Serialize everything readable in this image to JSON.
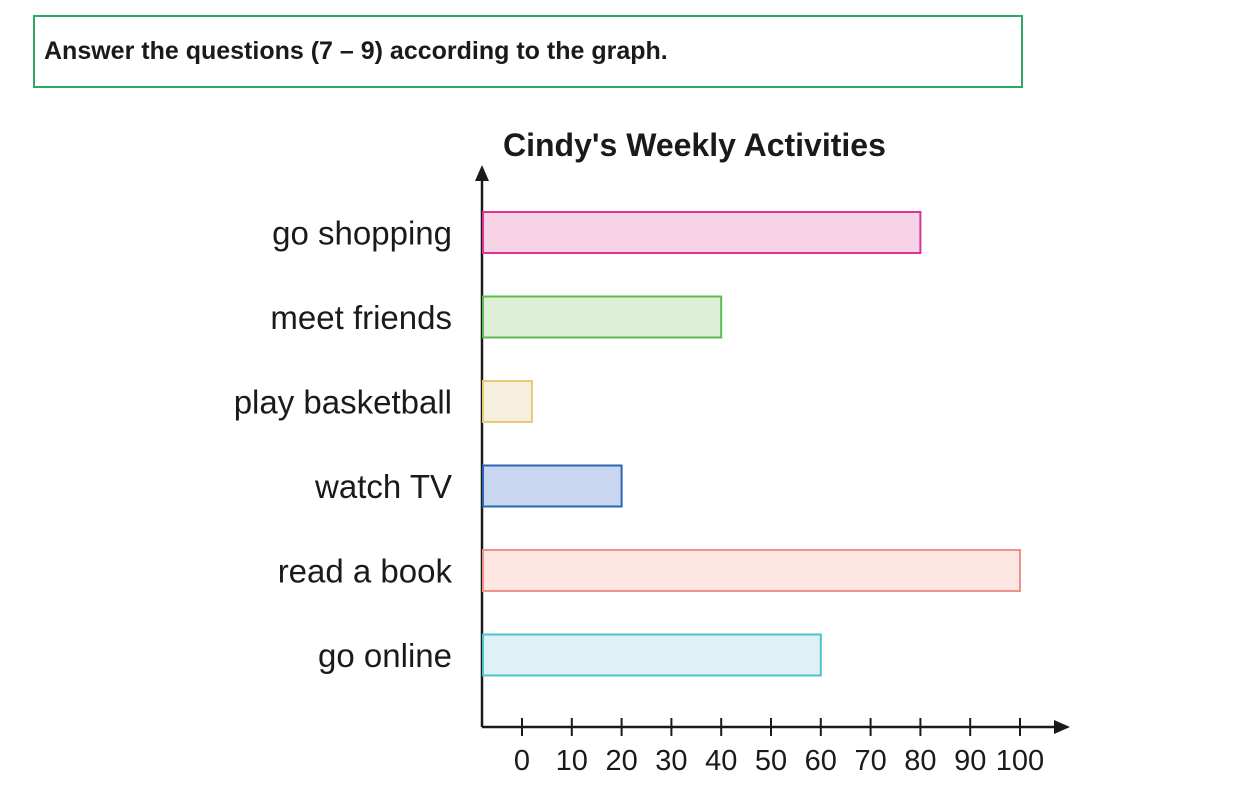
{
  "instruction": "Answer the questions (7 – 9) according to the graph.",
  "colors": {
    "instruction_border": "#2fa865",
    "axis": "#1a1a1a"
  },
  "chart_data": {
    "type": "bar",
    "orientation": "horizontal",
    "title": "Cindy's Weekly Activities",
    "xlabel": "",
    "ylabel": "",
    "categories": [
      "go shopping",
      "meet friends",
      "play basketball",
      "watch TV",
      "read a book",
      "go online"
    ],
    "values": [
      80,
      40,
      2,
      20,
      100,
      60
    ],
    "xlim": [
      0,
      100
    ],
    "xticks": [
      0,
      10,
      20,
      30,
      40,
      50,
      60,
      70,
      80,
      90,
      100
    ],
    "grid": false,
    "bar_colors": [
      {
        "fill": "#f7d3e6",
        "stroke": "#e0309a"
      },
      {
        "fill": "#ddefd6",
        "stroke": "#5bbd4e"
      },
      {
        "fill": "#f6efdd",
        "stroke": "#e8c97a"
      },
      {
        "fill": "#c9d6ef",
        "stroke": "#2b66b2"
      },
      {
        "fill": "#fde5e1",
        "stroke": "#ee9486"
      },
      {
        "fill": "#dff1f5",
        "stroke": "#4cc3cf"
      }
    ]
  }
}
